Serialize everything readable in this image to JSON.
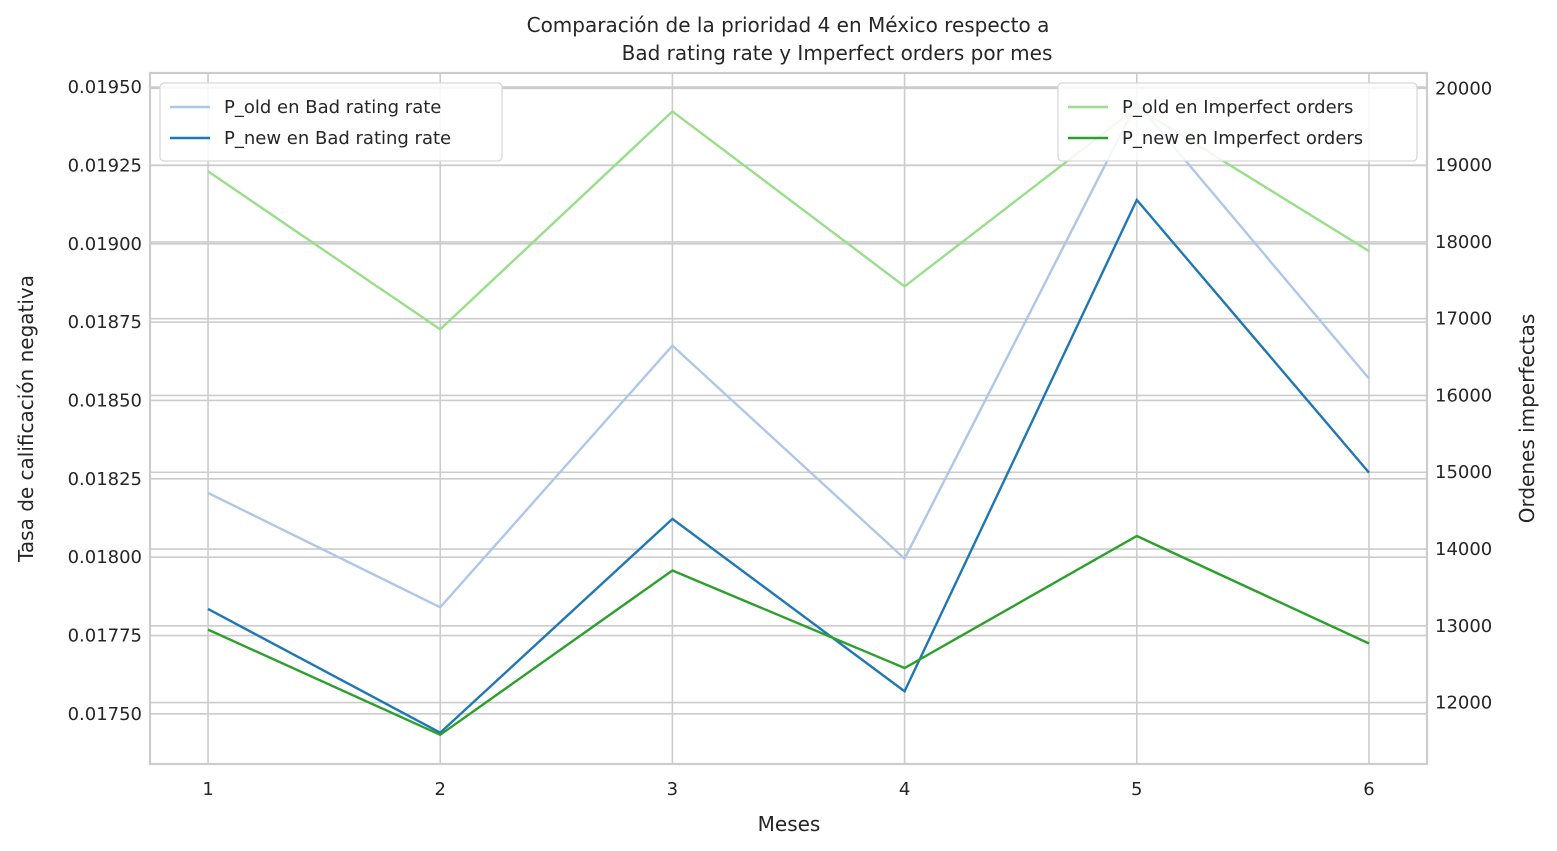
{
  "chart_data": {
    "type": "line",
    "title_lines": [
      "Comparación de la prioridad 4 en México respecto a",
      "Bad rating rate y Imperfect orders por mes"
    ],
    "xlabel": "Meses",
    "ylabel_left": "Tasa de calificación negativa",
    "ylabel_right": "Ordenes imperfectas",
    "x": [
      1,
      2,
      3,
      4,
      5,
      6
    ],
    "x_ticks": [
      "1",
      "2",
      "3",
      "4",
      "5",
      "6"
    ],
    "xlim": [
      0.75,
      6.25
    ],
    "ylim_left": [
      0.01734,
      0.019545
    ],
    "ylim_right": [
      11200,
      20200
    ],
    "y_ticks_left": [
      0.0175,
      0.01775,
      0.018,
      0.01825,
      0.0185,
      0.01875,
      0.019,
      0.01925,
      0.0195
    ],
    "y_tick_labels_left": [
      "0.01750",
      "0.01775",
      "0.01800",
      "0.01825",
      "0.01850",
      "0.01875",
      "0.01900",
      "0.01925",
      "0.01950"
    ],
    "y_ticks_right": [
      12000,
      13000,
      14000,
      15000,
      16000,
      17000,
      18000,
      19000,
      20000
    ],
    "y_tick_labels_right": [
      "12000",
      "13000",
      "14000",
      "15000",
      "16000",
      "17000",
      "18000",
      "19000",
      "20000"
    ],
    "grid": true,
    "series": [
      {
        "name": "P_old en Bad rating rate",
        "axis": "left",
        "color": "#aec7e8",
        "values": [
          0.018205,
          0.01784,
          0.018675,
          0.017995,
          0.01945,
          0.01857
        ]
      },
      {
        "name": "P_new en Bad rating rate",
        "axis": "left",
        "color": "#1f77b4",
        "values": [
          0.017835,
          0.01744,
          0.018122,
          0.017572,
          0.01914,
          0.01827
        ]
      },
      {
        "name": "P_old en Imperfect orders",
        "axis": "right",
        "color": "#98df8a",
        "values": [
          18920,
          16860,
          19700,
          17420,
          19750,
          17880
        ]
      },
      {
        "name": "P_new en Imperfect orders",
        "axis": "right",
        "color": "#2ca02c",
        "values": [
          12950,
          11580,
          13720,
          12450,
          14170,
          12770
        ]
      }
    ],
    "legend_left_placement": "upper-left",
    "legend_right_placement": "upper-right"
  }
}
